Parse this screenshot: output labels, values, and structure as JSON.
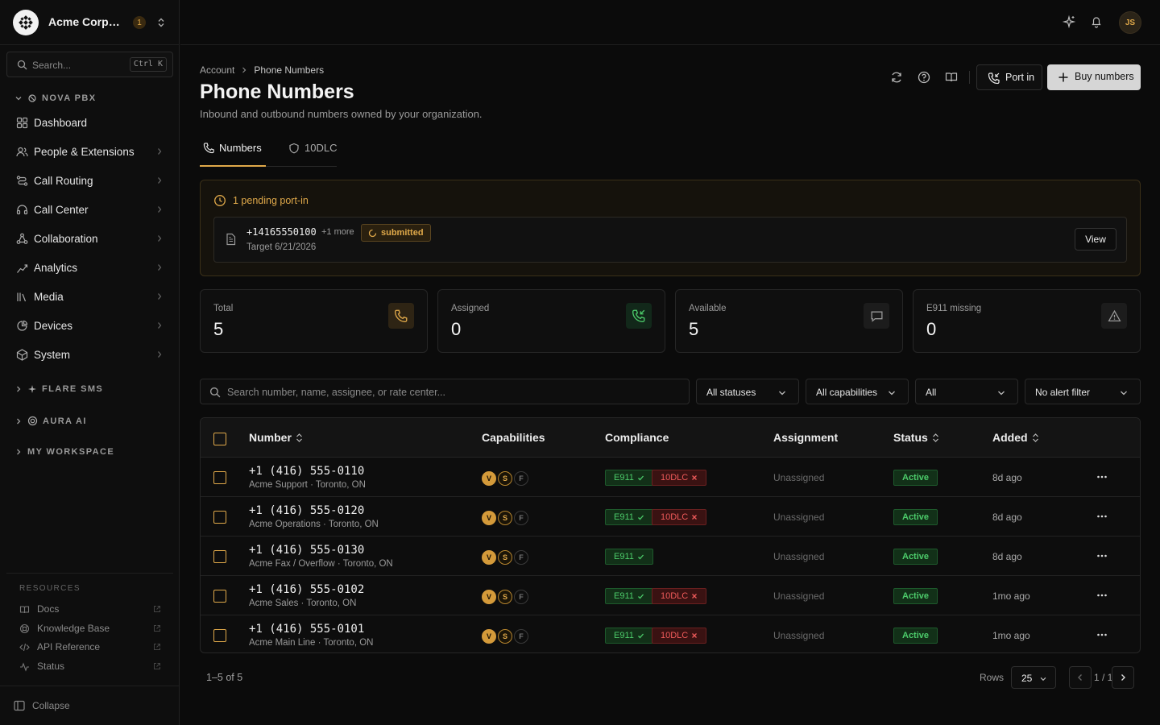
{
  "org": {
    "name": "Acme Corporation",
    "badge": "1"
  },
  "search": {
    "placeholder": "Search...",
    "shortcut": "Ctrl K"
  },
  "sections": {
    "nova": "NOVA PBX",
    "flare": "FLARE SMS",
    "aura": "AURA AI",
    "workspace": "MY WORKSPACE"
  },
  "nav": [
    {
      "label": "Dashboard",
      "icon": "dashboard-icon"
    },
    {
      "label": "People & Extensions",
      "icon": "people-icon"
    },
    {
      "label": "Call Routing",
      "icon": "routing-icon"
    },
    {
      "label": "Call Center",
      "icon": "headset-icon"
    },
    {
      "label": "Collaboration",
      "icon": "collaboration-icon"
    },
    {
      "label": "Analytics",
      "icon": "analytics-icon"
    },
    {
      "label": "Media",
      "icon": "media-icon"
    },
    {
      "label": "Devices",
      "icon": "devices-icon"
    },
    {
      "label": "System",
      "icon": "system-icon"
    }
  ],
  "resources": {
    "heading": "RESOURCES",
    "items": [
      {
        "label": "Docs"
      },
      {
        "label": "Knowledge Base"
      },
      {
        "label": "API Reference"
      },
      {
        "label": "Status"
      }
    ]
  },
  "collapse_label": "Collapse",
  "user": {
    "initials": "JS"
  },
  "page": {
    "breadcrumb": [
      "Account",
      "Phone Numbers"
    ],
    "title": "Phone Numbers",
    "subtitle": "Inbound and outbound numbers owned by your organization.",
    "port_in_label": "Port in",
    "buy_label": "Buy numbers"
  },
  "tabs": [
    {
      "label": "Numbers",
      "active": true
    },
    {
      "label": "10DLC",
      "active": false
    }
  ],
  "pending": {
    "heading": "1 pending port-in",
    "number": "+14165550100",
    "more": "+1 more",
    "status": "submitted",
    "target": "Target 6/21/2026",
    "view_label": "View"
  },
  "stats": [
    {
      "label": "Total",
      "value": "5"
    },
    {
      "label": "Assigned",
      "value": "0"
    },
    {
      "label": "Available",
      "value": "5"
    },
    {
      "label": "E911 missing",
      "value": "0"
    }
  ],
  "filters": {
    "search_placeholder": "Search number, name, assignee, or rate center...",
    "status": "All statuses",
    "capabilities": "All capabilities",
    "type": "All",
    "alert": "No alert filter"
  },
  "table": {
    "headers": {
      "number": "Number",
      "capabilities": "Capabilities",
      "compliance": "Compliance",
      "assignment": "Assignment",
      "status": "Status",
      "added": "Added"
    },
    "rows": [
      {
        "number": "+1 (416) 555-0110",
        "sub": "Acme Support · Toronto, ON",
        "e911": "E911",
        "dlc": "10DLC",
        "has_dlc": true,
        "assignment": "Unassigned",
        "status": "Active",
        "added": "8d ago"
      },
      {
        "number": "+1 (416) 555-0120",
        "sub": "Acme Operations · Toronto, ON",
        "e911": "E911",
        "dlc": "10DLC",
        "has_dlc": true,
        "assignment": "Unassigned",
        "status": "Active",
        "added": "8d ago"
      },
      {
        "number": "+1 (416) 555-0130",
        "sub": "Acme Fax / Overflow · Toronto, ON",
        "e911": "E911",
        "dlc": "",
        "has_dlc": false,
        "assignment": "Unassigned",
        "status": "Active",
        "added": "8d ago"
      },
      {
        "number": "+1 (416) 555-0102",
        "sub": "Acme Sales · Toronto, ON",
        "e911": "E911",
        "dlc": "10DLC",
        "has_dlc": true,
        "assignment": "Unassigned",
        "status": "Active",
        "added": "1mo ago"
      },
      {
        "number": "+1 (416) 555-0101",
        "sub": "Acme Main Line · Toronto, ON",
        "e911": "E911",
        "dlc": "10DLC",
        "has_dlc": true,
        "assignment": "Unassigned",
        "status": "Active",
        "added": "1mo ago"
      }
    ],
    "caps_labels": [
      "V",
      "S",
      "F"
    ]
  },
  "pagination": {
    "count": "1–5 of 5",
    "rows_label": "Rows",
    "rows_value": "25",
    "page": "1 / 1"
  },
  "colors": {
    "accent": "#e0a94a",
    "success": "#4ccb6a",
    "danger": "#ef5a5a",
    "background": "#0b0b0b"
  }
}
